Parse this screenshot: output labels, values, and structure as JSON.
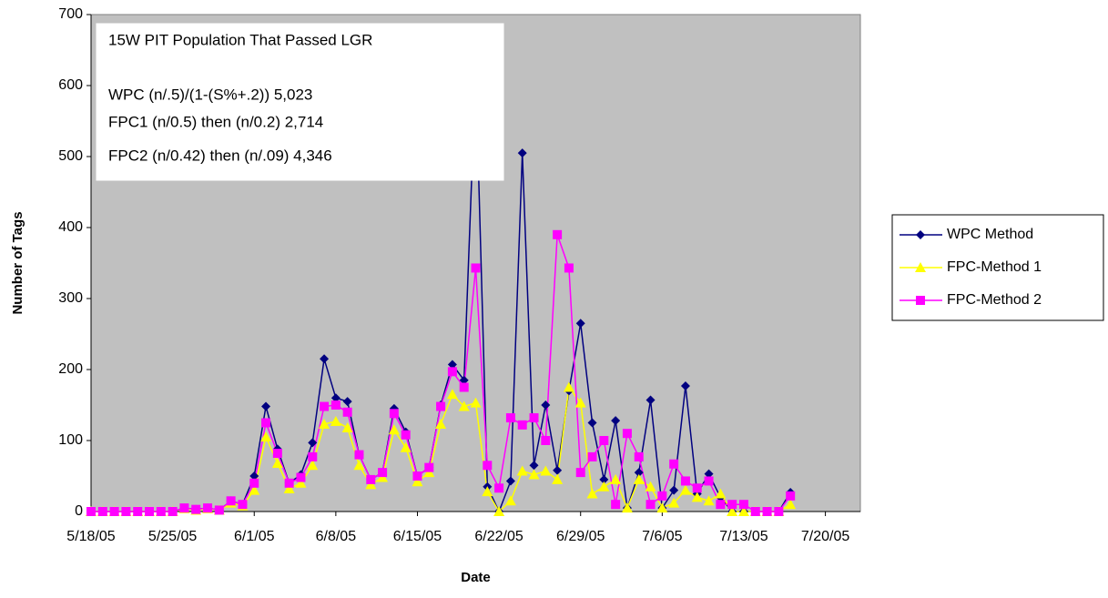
{
  "chart_data": {
    "type": "line",
    "x_label": "Date",
    "y_label": "Number of Tags",
    "annotation": [
      "15W PIT Population That Passed LGR",
      "WPC (n/.5)/(1-(S%+.2))  5,023",
      "FPC1  (n/0.5) then (n/0.2) 2,714",
      "FPC2  (n/0.42) then (n/.09) 4,346"
    ],
    "x": [
      "2005-05-18",
      "2005-05-19",
      "2005-05-20",
      "2005-05-21",
      "2005-05-22",
      "2005-05-23",
      "2005-05-24",
      "2005-05-25",
      "2005-05-26",
      "2005-05-27",
      "2005-05-28",
      "2005-05-29",
      "2005-05-30",
      "2005-05-31",
      "2005-06-01",
      "2005-06-02",
      "2005-06-03",
      "2005-06-04",
      "2005-06-05",
      "2005-06-06",
      "2005-06-07",
      "2005-06-08",
      "2005-06-09",
      "2005-06-10",
      "2005-06-11",
      "2005-06-12",
      "2005-06-13",
      "2005-06-14",
      "2005-06-15",
      "2005-06-16",
      "2005-06-17",
      "2005-06-18",
      "2005-06-19",
      "2005-06-20",
      "2005-06-21",
      "2005-06-22",
      "2005-06-23",
      "2005-06-24",
      "2005-06-25",
      "2005-06-26",
      "2005-06-27",
      "2005-06-28",
      "2005-06-29",
      "2005-06-30",
      "2005-07-01",
      "2005-07-02",
      "2005-07-03",
      "2005-07-04",
      "2005-07-05",
      "2005-07-06",
      "2005-07-07",
      "2005-07-08",
      "2005-07-09",
      "2005-07-10",
      "2005-07-11",
      "2005-07-12",
      "2005-07-13",
      "2005-07-14",
      "2005-07-15",
      "2005-07-16",
      "2005-07-17"
    ],
    "series": [
      {
        "name": "WPC Method",
        "color": "#000080",
        "marker": "diamond",
        "values": [
          0,
          0,
          0,
          0,
          0,
          0,
          0,
          0,
          5,
          3,
          5,
          2,
          15,
          10,
          50,
          148,
          88,
          40,
          52,
          97,
          215,
          160,
          155,
          80,
          45,
          55,
          145,
          112,
          50,
          62,
          150,
          207,
          185,
          620,
          35,
          0,
          43,
          505,
          65,
          150,
          58,
          170,
          265,
          125,
          45,
          128,
          5,
          55,
          157,
          5,
          30,
          177,
          25,
          53,
          20,
          0,
          0,
          0,
          0,
          0,
          27
        ]
      },
      {
        "name": "FPC-Method 1",
        "color": "#ffff00",
        "marker": "triangle",
        "values": [
          0,
          0,
          0,
          0,
          0,
          0,
          0,
          0,
          4,
          2,
          4,
          2,
          12,
          8,
          30,
          105,
          68,
          32,
          40,
          65,
          123,
          127,
          118,
          65,
          38,
          48,
          115,
          90,
          42,
          55,
          123,
          165,
          148,
          153,
          28,
          0,
          15,
          57,
          52,
          57,
          45,
          175,
          153,
          25,
          35,
          45,
          5,
          45,
          35,
          5,
          12,
          30,
          20,
          15,
          25,
          0,
          0,
          0,
          0,
          0,
          10
        ]
      },
      {
        "name": "FPC-Method 2",
        "color": "#ff00ff",
        "marker": "square",
        "values": [
          0,
          0,
          0,
          0,
          0,
          0,
          0,
          0,
          5,
          3,
          5,
          2,
          15,
          10,
          40,
          125,
          82,
          40,
          48,
          77,
          148,
          150,
          140,
          80,
          45,
          55,
          138,
          108,
          50,
          62,
          148,
          197,
          175,
          343,
          65,
          33,
          132,
          122,
          132,
          100,
          390,
          343,
          55,
          77,
          100,
          10,
          110,
          77,
          10,
          22,
          67,
          43,
          33,
          43,
          10,
          10,
          10,
          0,
          0,
          0,
          22
        ]
      }
    ],
    "xlim": [
      "2005-05-18",
      "2005-07-23"
    ],
    "xticks": [
      {
        "value": "2005-05-18",
        "label": "5/18/05"
      },
      {
        "value": "2005-05-25",
        "label": "5/25/05"
      },
      {
        "value": "2005-06-01",
        "label": "6/1/05"
      },
      {
        "value": "2005-06-08",
        "label": "6/8/05"
      },
      {
        "value": "2005-06-15",
        "label": "6/15/05"
      },
      {
        "value": "2005-06-22",
        "label": "6/22/05"
      },
      {
        "value": "2005-06-29",
        "label": "6/29/05"
      },
      {
        "value": "2005-07-06",
        "label": "7/6/05"
      },
      {
        "value": "2005-07-13",
        "label": "7/13/05"
      },
      {
        "value": "2005-07-20",
        "label": "7/20/05"
      }
    ],
    "ylim": [
      0,
      700
    ],
    "yticks": [
      0,
      100,
      200,
      300,
      400,
      500,
      600,
      700
    ],
    "grid": false,
    "legend": "right",
    "plot_color": "#c0c0c0"
  }
}
